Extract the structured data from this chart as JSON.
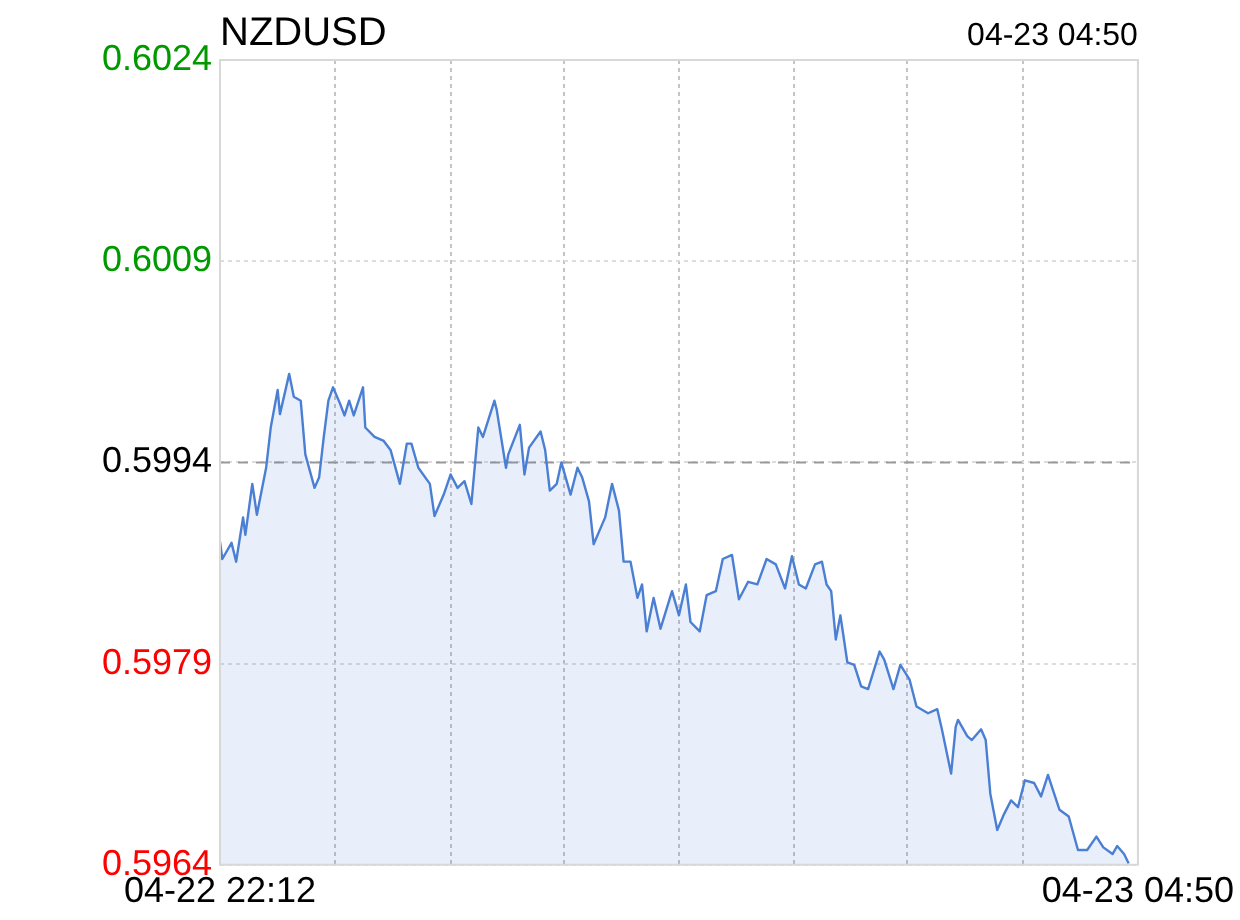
{
  "chart_data": {
    "type": "area",
    "title": "NZDUSD",
    "annotations": [
      "04-23 04:50"
    ],
    "x": [
      "--04-22T22:12",
      "--04-22T22:13",
      "--04-22T22:17",
      "--04-22T22:19",
      "--04-22T22:22",
      "--04-22T22:23",
      "--04-22T22:26",
      "--04-22T22:28",
      "--04-22T22:32",
      "--04-22T22:34",
      "--04-22T22:37",
      "--04-22T22:38",
      "--04-22T22:42",
      "--04-22T22:44",
      "--04-22T22:47",
      "--04-22T22:49",
      "--04-22T22:53",
      "--04-22T22:55",
      "--04-22T22:57",
      "--04-22T22:59",
      "--04-22T23:01",
      "--04-22T23:04",
      "--04-22T23:06",
      "--04-22T23:08",
      "--04-22T23:10",
      "--04-22T23:14",
      "--04-22T23:15",
      "--04-22T23:19",
      "--04-22T23:23",
      "--04-22T23:26",
      "--04-22T23:30",
      "--04-22T23:33",
      "--04-22T23:35",
      "--04-22T23:38",
      "--04-22T23:43",
      "--04-22T23:45",
      "--04-22T23:49",
      "--04-22T23:52",
      "--04-22T23:55",
      "--04-22T23:58",
      "--04-23T00:01",
      "--04-23T00:04",
      "--04-23T00:06",
      "--04-23T00:11",
      "--04-23T00:12",
      "--04-23T00:16",
      "--04-23T00:17",
      "--04-23T00:22",
      "--04-23T00:24",
      "--04-23T00:26",
      "--04-23T00:31",
      "--04-23T00:33",
      "--04-23T00:35",
      "--04-23T00:38",
      "--04-23T00:40",
      "--04-23T00:44",
      "--04-23T00:47",
      "--04-23T00:49",
      "--04-23T00:52",
      "--04-23T00:54",
      "--04-23T00:57",
      "--04-23T00:59",
      "--04-23T01:02",
      "--04-23T01:05",
      "--04-23T01:07",
      "--04-23T01:10",
      "--04-23T01:13",
      "--04-23T01:15",
      "--04-23T01:17",
      "--04-23T01:20",
      "--04-23T01:23",
      "--04-23T01:28",
      "--04-23T01:31",
      "--04-23T01:34",
      "--04-23T01:36",
      "--04-23T01:40",
      "--04-23T01:43",
      "--04-23T01:47",
      "--04-23T01:50",
      "--04-23T01:54",
      "--04-23T01:57",
      "--04-23T02:01",
      "--04-23T02:05",
      "--04-23T02:09",
      "--04-23T02:13",
      "--04-23T02:17",
      "--04-23T02:20",
      "--04-23T02:23",
      "--04-23T02:26",
      "--04-23T02:30",
      "--04-23T02:33",
      "--04-23T02:35",
      "--04-23T02:37",
      "--04-23T02:39",
      "--04-23T02:41",
      "--04-23T02:44",
      "--04-23T02:47",
      "--04-23T02:50",
      "--04-23T02:53",
      "--04-23T02:58",
      "--04-23T03:00",
      "--04-23T03:04",
      "--04-23T03:07",
      "--04-23T03:11",
      "--04-23T03:14",
      "--04-23T03:19",
      "--04-23T03:23",
      "--04-23T03:25",
      "--04-23T03:29",
      "--04-23T03:31",
      "--04-23T03:32",
      "--04-23T03:36",
      "--04-23T03:38",
      "--04-23T03:42",
      "--04-23T03:44",
      "--04-23T03:46",
      "--04-23T03:49",
      "--04-23T03:52",
      "--04-23T03:55",
      "--04-23T03:58",
      "--04-23T04:01",
      "--04-23T04:05",
      "--04-23T04:08",
      "--04-23T04:11",
      "--04-23T04:16",
      "--04-23T04:20",
      "--04-23T04:24",
      "--04-23T04:28",
      "--04-23T04:32",
      "--04-23T04:35",
      "--04-23T04:39",
      "--04-23T04:41",
      "--04-23T04:44",
      "--04-23T04:46"
    ],
    "series": [
      {
        "color": "#4a7fd4",
        "values": [
          0.59881,
          0.59868,
          0.5988,
          0.59866,
          0.59899,
          0.59886,
          0.59924,
          0.59901,
          0.59936,
          0.59966,
          0.59994,
          0.59976,
          0.60006,
          0.59989,
          0.59986,
          0.59946,
          0.59921,
          0.59929,
          0.59959,
          0.59986,
          0.59996,
          0.59984,
          0.59975,
          0.59986,
          0.59975,
          0.59996,
          0.59966,
          0.59959,
          0.59956,
          0.59949,
          0.59924,
          0.59954,
          0.59954,
          0.59936,
          0.59924,
          0.599,
          0.59916,
          0.59931,
          0.59921,
          0.59926,
          0.59909,
          0.59966,
          0.59959,
          0.59986,
          0.59979,
          0.59936,
          0.59946,
          0.59968,
          0.59931,
          0.59951,
          0.59963,
          0.59949,
          0.59919,
          0.59924,
          0.5994,
          0.59916,
          0.59936,
          0.59929,
          0.59911,
          0.59879,
          0.59891,
          0.59899,
          0.59924,
          0.59904,
          0.59866,
          0.59866,
          0.59839,
          0.59849,
          0.59814,
          0.59839,
          0.59816,
          0.59844,
          0.59826,
          0.59849,
          0.59821,
          0.59814,
          0.59841,
          0.59844,
          0.59868,
          0.59871,
          0.59838,
          0.59851,
          0.59849,
          0.59868,
          0.59864,
          0.59846,
          0.5987,
          0.59849,
          0.59846,
          0.59864,
          0.59866,
          0.59849,
          0.59844,
          0.59808,
          0.59826,
          0.59791,
          0.59789,
          0.59773,
          0.59771,
          0.59799,
          0.59793,
          0.59771,
          0.59789,
          0.59778,
          0.59758,
          0.59753,
          0.59756,
          0.59741,
          0.59708,
          0.59743,
          0.59748,
          0.59736,
          0.59733,
          0.59741,
          0.59733,
          0.59693,
          0.59666,
          0.59678,
          0.59688,
          0.59683,
          0.59703,
          0.59701,
          0.59691,
          0.59707,
          0.59681,
          0.59676,
          0.59651,
          0.59651,
          0.59661,
          0.59653,
          0.59648,
          0.59654,
          0.59648,
          0.59641
        ]
      }
    ],
    "xlim": [
      "--04-22T22:12",
      "--04-23T04:50"
    ],
    "xticks": [
      {
        "value": "--04-22T22:12",
        "label": "04-22 22:12"
      },
      {
        "value": "--04-22T23:02",
        "label": null
      },
      {
        "value": "--04-22T23:52",
        "label": null
      },
      {
        "value": "--04-23T00:41",
        "label": null
      },
      {
        "value": "--04-23T01:31",
        "label": null
      },
      {
        "value": "--04-23T02:21",
        "label": null
      },
      {
        "value": "--04-23T03:10",
        "label": null
      },
      {
        "value": "--04-23T04:00",
        "label": null
      },
      {
        "value": "--04-23T04:50",
        "label": "04-23 04:50"
      }
    ],
    "ylim": [
      0.5964,
      0.6024
    ],
    "yticks": [
      0.5964,
      0.5979,
      0.5994,
      0.6009,
      0.6024
    ],
    "ref_lines": [
      {
        "axis": "y",
        "value": 0.5994,
        "color": "#999999",
        "line_style": "dashed"
      }
    ],
    "grid": true,
    "legend": false,
    "marker": "none",
    "line_style": "solid"
  }
}
